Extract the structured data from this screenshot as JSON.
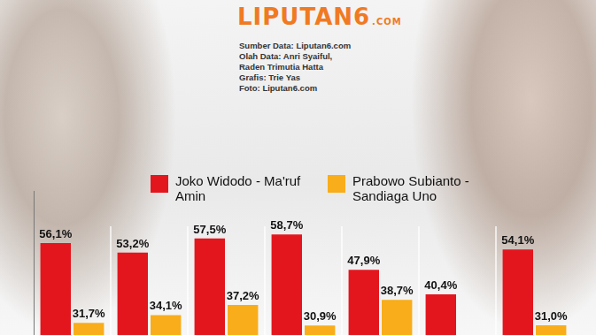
{
  "header": {
    "logo": "LIPUTAN6",
    "logo_suffix": ".COM",
    "credits": [
      "Sumber Data: Liputan6.com",
      "Olah Data: Anri Syaiful,",
      "Raden Trimutia Hatta",
      "Grafis: Trie Yas",
      "Foto: Liputan6.com"
    ]
  },
  "chart_data": {
    "type": "bar",
    "categories": [
      null,
      null,
      null,
      null,
      null,
      null,
      null
    ],
    "series": [
      {
        "name": "Joko Widodo - Ma'ruf Amin",
        "color": "#e3161e",
        "values": [
          56.1,
          53.2,
          57.5,
          58.7,
          47.9,
          40.4,
          54.1
        ],
        "value_labels": [
          "56,1%",
          "53,2%",
          "57,5%",
          "58,7%",
          "47,9%",
          "40,4%",
          "54,1%"
        ]
      },
      {
        "name": "Prabowo Subianto - Sandiaga Uno",
        "color": "#f9ad1b",
        "values": [
          31.7,
          34.1,
          37.2,
          30.9,
          38.7,
          null,
          31.0
        ],
        "value_labels": [
          "31,7%",
          "34,1%",
          "37,2%",
          "30,9%",
          "38,7%",
          null,
          "31,0%"
        ]
      }
    ],
    "ylim": [
      28,
      72
    ],
    "yticks": [],
    "tick_labels": false,
    "grid": false,
    "data_labels": true,
    "legend": "top"
  }
}
